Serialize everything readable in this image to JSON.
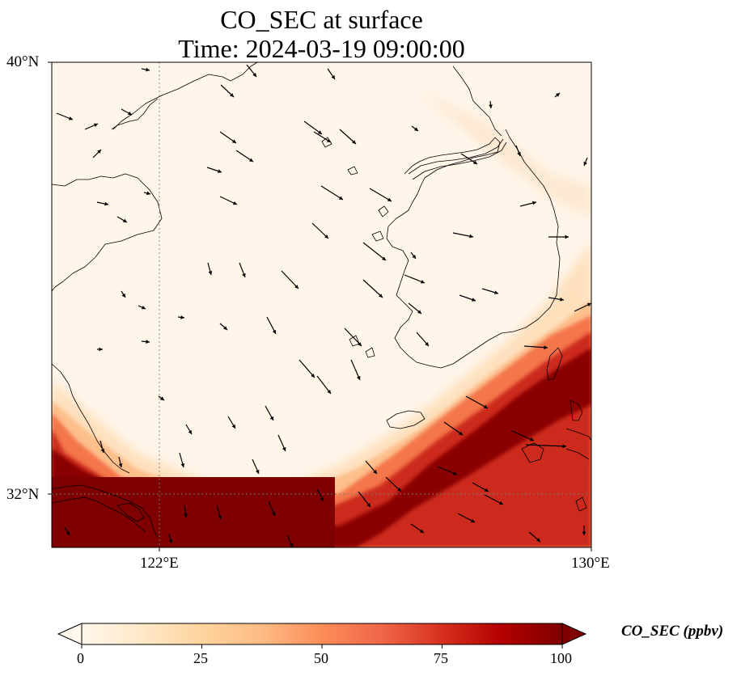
{
  "title": {
    "line1": "CO_SEC at surface",
    "line2": "Time: 2024-03-19 09:00:00"
  },
  "map": {
    "lon_range": [
      120,
      130
    ],
    "lat_range": [
      30.8,
      40
    ],
    "lat_ticks": [
      "40°N",
      "32°N"
    ],
    "lon_ticks": [
      "122°E",
      "130°E"
    ],
    "gridlines": {
      "lon": [
        122,
        130
      ],
      "lat": [
        32
      ]
    }
  },
  "colorbar": {
    "label": "CO_SEC (ppbv)",
    "min": 0,
    "max": 100,
    "ticks": [
      "0",
      "25",
      "50",
      "75",
      "100"
    ],
    "colormap": "OrRd",
    "colors": [
      "#fff7ec",
      "#fee8c8",
      "#fdd49e",
      "#fdbb84",
      "#fc8d59",
      "#ef6548",
      "#d7301f",
      "#b30000",
      "#7f0000"
    ],
    "extend": "both"
  }
}
